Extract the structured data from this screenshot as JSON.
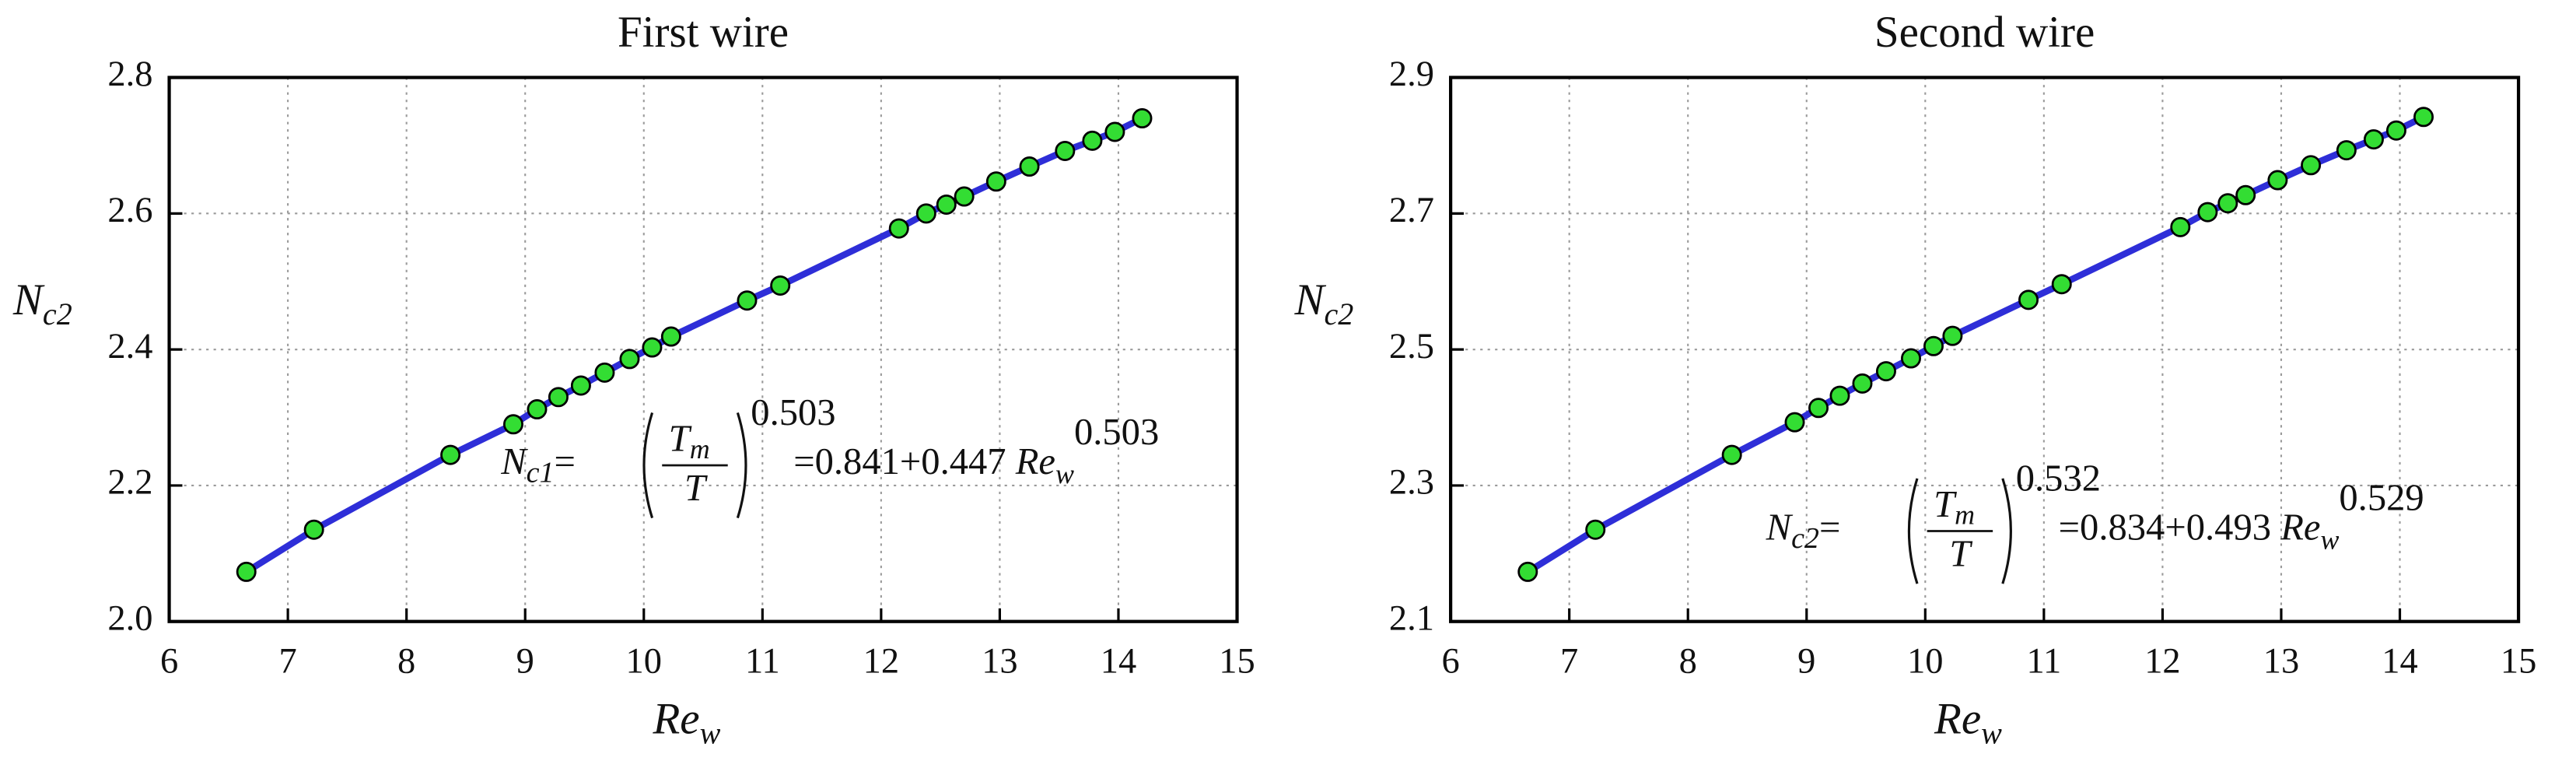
{
  "chart_data": [
    {
      "type": "line",
      "title": "First wire",
      "xlabel": {
        "text": "Re",
        "sub": "w"
      },
      "ylabel": {
        "text": "N",
        "sub": "c2"
      },
      "x": [
        6.65,
        7.22,
        8.37,
        8.9,
        9.1,
        9.28,
        9.47,
        9.67,
        9.88,
        10.07,
        10.23,
        10.87,
        11.15,
        12.15,
        12.38,
        12.55,
        12.7,
        12.97,
        13.25,
        13.55,
        13.78,
        13.97,
        14.2
      ],
      "values": [
        2.073,
        2.135,
        2.245,
        2.29,
        2.312,
        2.33,
        2.347,
        2.366,
        2.386,
        2.403,
        2.419,
        2.472,
        2.494,
        2.578,
        2.6,
        2.613,
        2.625,
        2.647,
        2.669,
        2.692,
        2.707,
        2.72,
        2.74
      ],
      "color": "#2e2ed8",
      "marker_color": "#33dd33",
      "xlim": [
        6,
        15
      ],
      "xticks": [
        6,
        7,
        8,
        9,
        10,
        11,
        12,
        13,
        14,
        15
      ],
      "ylim": [
        2,
        2.8
      ],
      "yticks": [
        {
          "value": 2,
          "label": "2.0"
        },
        2.2,
        2.4,
        2.6,
        2.8
      ],
      "grid": true,
      "annotation": {
        "lhs": "N",
        "lhs_sub": "c1",
        "lhs_eq": "=",
        "num": "T",
        "num_sub": "m",
        "den": "T",
        "exp": "0.503",
        "rhs": "=0.841+0.447 ",
        "rhs_var": "Re",
        "rhs_sub": "w",
        "rhs_exp": "0.503"
      }
    },
    {
      "type": "line",
      "title": "Second wire",
      "xlabel": {
        "text": "Re",
        "sub": "w"
      },
      "ylabel": {
        "text": "N",
        "sub": "c2"
      },
      "x": [
        6.65,
        7.22,
        8.37,
        8.9,
        9.1,
        9.28,
        9.47,
        9.67,
        9.88,
        10.07,
        10.23,
        10.87,
        11.15,
        12.15,
        12.38,
        12.55,
        12.7,
        12.97,
        13.25,
        13.55,
        13.78,
        13.97,
        14.2
      ],
      "values": [
        2.173,
        2.235,
        2.345,
        2.393,
        2.414,
        2.432,
        2.45,
        2.468,
        2.487,
        2.505,
        2.52,
        2.573,
        2.596,
        2.68,
        2.702,
        2.715,
        2.727,
        2.749,
        2.771,
        2.793,
        2.809,
        2.822,
        2.842
      ],
      "color": "#2e2ed8",
      "marker_color": "#33dd33",
      "xlim": [
        6,
        15
      ],
      "xticks": [
        6,
        7,
        8,
        9,
        10,
        11,
        12,
        13,
        14,
        15
      ],
      "ylim": [
        2.1,
        2.9
      ],
      "yticks": [
        2.1,
        2.3,
        2.5,
        2.7,
        2.9
      ],
      "grid": true,
      "annotation": {
        "lhs": "N",
        "lhs_sub": "c2",
        "lhs_eq": "=",
        "num": "T",
        "num_sub": "m",
        "den": "T",
        "exp": "0.532",
        "rhs": "=0.834+0.493 ",
        "rhs_var": "Re",
        "rhs_sub": "w",
        "rhs_exp": "0.529"
      }
    }
  ]
}
